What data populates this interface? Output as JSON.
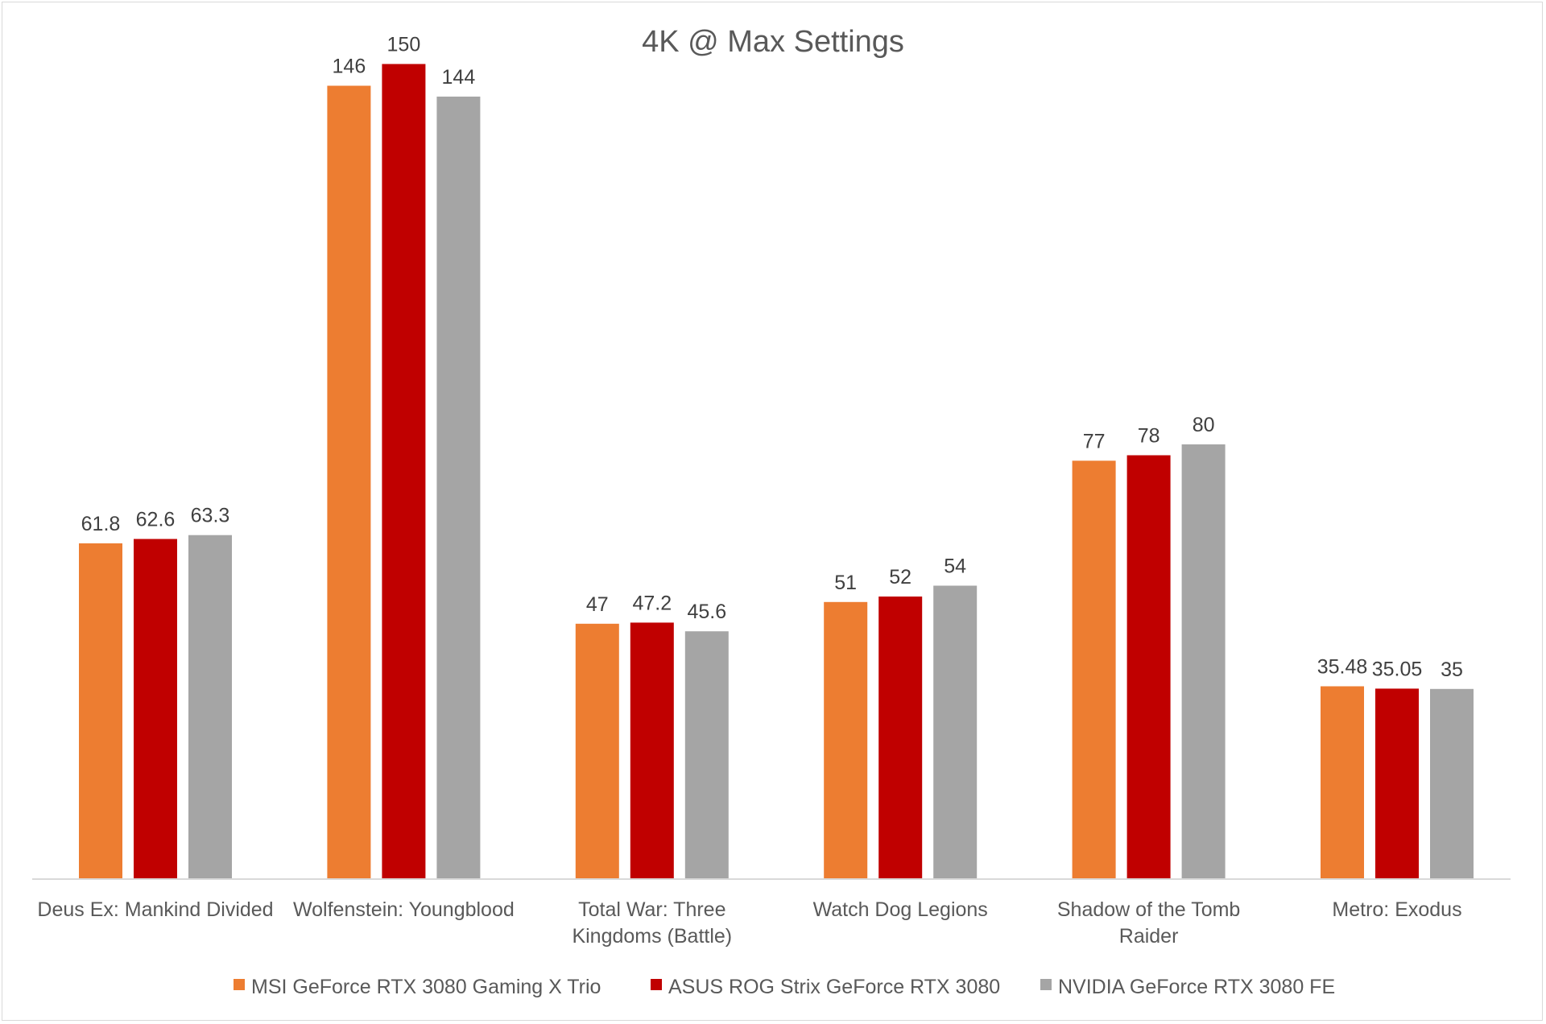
{
  "chart_data": {
    "type": "bar",
    "title": "4K @ Max Settings",
    "xlabel": "",
    "ylabel": "",
    "ylim": [
      0,
      160
    ],
    "grid": false,
    "legend_position": "bottom",
    "categories": [
      [
        "Deus Ex: Mankind Divided"
      ],
      [
        "Wolfenstein: Youngblood"
      ],
      [
        "Total War: Three",
        "Kingdoms (Battle)"
      ],
      [
        "Watch Dog Legions"
      ],
      [
        "Shadow of the Tomb",
        "Raider"
      ],
      [
        "Metro: Exodus"
      ]
    ],
    "series": [
      {
        "name": "MSI GeForce RTX 3080 Gaming X Trio",
        "color": "#ed7d31",
        "values": [
          61.8,
          146,
          47,
          51,
          77,
          35.48
        ],
        "labels": [
          "61.8",
          "146",
          "47",
          "51",
          "77",
          "35.48"
        ]
      },
      {
        "name": "ASUS ROG Strix GeForce RTX 3080",
        "color": "#c00000",
        "values": [
          62.6,
          150,
          47.2,
          52,
          78,
          35.05
        ],
        "labels": [
          "62.6",
          "150",
          "47.2",
          "52",
          "78",
          "35.05"
        ]
      },
      {
        "name": "NVIDIA GeForce RTX 3080 FE",
        "color": "#a5a5a5",
        "values": [
          63.3,
          144,
          45.6,
          54,
          80,
          35
        ],
        "labels": [
          "63.3",
          "144",
          "45.6",
          "54",
          "80",
          "35"
        ]
      }
    ]
  }
}
